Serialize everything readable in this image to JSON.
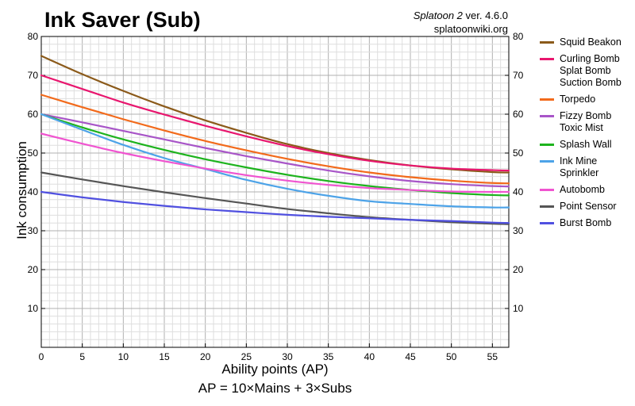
{
  "header": {
    "title": "Ink Saver (Sub)",
    "game_name": "Splatoon 2",
    "version_text": " ver. 4.6.0",
    "site": "splatoonwiki.org"
  },
  "chart_data": {
    "type": "line",
    "title": "Ink Saver (Sub)",
    "xlabel": "Ability points (AP)",
    "xlabel_sub": "AP = 10×Mains + 3×Subs",
    "ylabel": "Ink consumption",
    "xlim": [
      0,
      57
    ],
    "ylim": [
      0,
      80
    ],
    "x_ticks": [
      0,
      5,
      10,
      15,
      20,
      25,
      30,
      35,
      40,
      45,
      50,
      55
    ],
    "y_ticks": [
      10,
      20,
      30,
      40,
      50,
      60,
      70,
      80
    ],
    "grid": true,
    "legend_position": "right",
    "x": [
      0,
      5,
      10,
      15,
      20,
      25,
      30,
      35,
      40,
      45,
      50,
      55,
      57
    ],
    "series": [
      {
        "name": "Squid Beakon",
        "color": "#8B5A1A",
        "values": [
          75,
          70.3,
          66,
          62,
          58.4,
          55.2,
          52.3,
          50.0,
          48.2,
          46.8,
          45.8,
          45.1,
          45.0
        ]
      },
      {
        "name": "Curling Bomb\nSplat Bomb\nSuction Bomb",
        "color": "#E8166E",
        "values": [
          70,
          66.5,
          63,
          59.9,
          57,
          54.3,
          51.8,
          49.7,
          48.0,
          46.8,
          46.0,
          45.6,
          45.5
        ]
      },
      {
        "name": "Torpedo",
        "color": "#F26A1B",
        "values": [
          65,
          61.8,
          58.7,
          55.8,
          53.1,
          50.7,
          48.5,
          46.6,
          45.0,
          43.8,
          42.9,
          42.3,
          42.2
        ]
      },
      {
        "name": "Fizzy Bomb\nToxic Mist",
        "color": "#A855C8",
        "values": [
          60,
          57.9,
          55.7,
          53.5,
          51.3,
          49.2,
          47.3,
          45.5,
          44.0,
          42.8,
          42.0,
          41.5,
          41.4
        ]
      },
      {
        "name": "Splash Wall",
        "color": "#1DB31D",
        "values": [
          60,
          56.6,
          53.5,
          50.8,
          48.4,
          46.3,
          44.4,
          42.8,
          41.5,
          40.5,
          39.7,
          39.2,
          39.1
        ]
      },
      {
        "name": "Ink Mine\nSprinkler",
        "color": "#4DA3E8",
        "values": [
          60,
          56.0,
          52.1,
          48.7,
          45.9,
          43.1,
          40.8,
          39.0,
          37.6,
          36.9,
          36.3,
          36.0,
          36.0
        ]
      },
      {
        "name": "Autobomb",
        "color": "#F054D0",
        "values": [
          55,
          52.4,
          50,
          47.9,
          46.0,
          44.3,
          42.9,
          41.8,
          41.0,
          40.5,
          40.1,
          40.0,
          40.0
        ]
      },
      {
        "name": "Point Sensor",
        "color": "#555555",
        "values": [
          45,
          43.2,
          41.5,
          39.9,
          38.4,
          37.0,
          35.6,
          34.5,
          33.5,
          32.8,
          32.2,
          31.8,
          31.7
        ]
      },
      {
        "name": "Burst Bomb",
        "color": "#5050E0",
        "values": [
          40,
          38.6,
          37.4,
          36.4,
          35.5,
          34.8,
          34.1,
          33.6,
          33.2,
          32.8,
          32.5,
          32.1,
          32.0
        ]
      }
    ]
  }
}
